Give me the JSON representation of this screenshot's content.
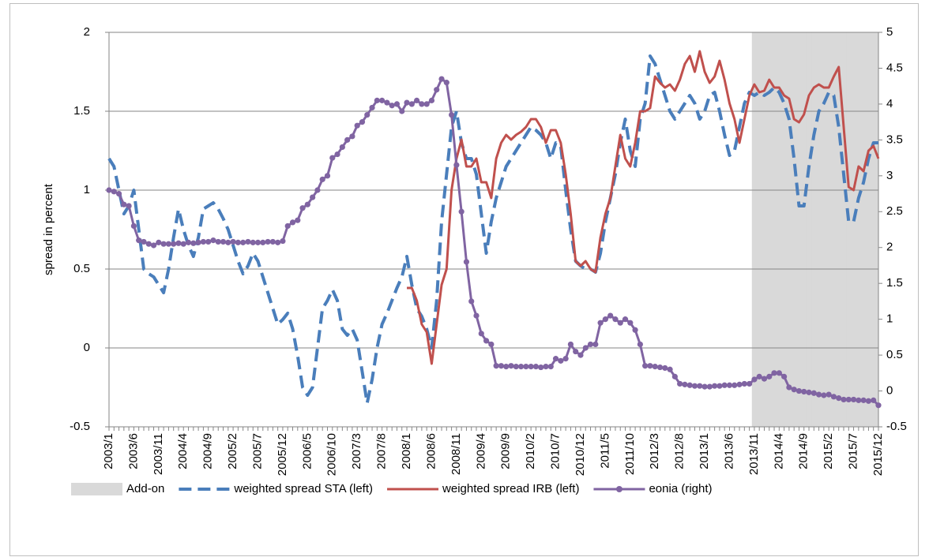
{
  "chart_data": {
    "type": "line",
    "y_label": "spread in percent",
    "categories": [
      "2003/1",
      null,
      null,
      null,
      null,
      "2003/6",
      null,
      null,
      null,
      null,
      "2003/11",
      null,
      null,
      null,
      null,
      "2004/4",
      null,
      null,
      null,
      null,
      "2004/9",
      null,
      null,
      null,
      null,
      "2005/2",
      null,
      null,
      null,
      null,
      "2005/7",
      null,
      null,
      null,
      null,
      "2005/12",
      null,
      null,
      null,
      null,
      "2006/5",
      null,
      null,
      null,
      null,
      "2006/10",
      null,
      null,
      null,
      null,
      "2007/3",
      null,
      null,
      null,
      null,
      "2007/8",
      null,
      null,
      null,
      null,
      "2008/1",
      null,
      null,
      null,
      null,
      "2008/6",
      null,
      null,
      null,
      null,
      "2008/11",
      null,
      null,
      null,
      null,
      "2009/4",
      null,
      null,
      null,
      null,
      "2009/9",
      null,
      null,
      null,
      null,
      "2010/2",
      null,
      null,
      null,
      null,
      "2010/7",
      null,
      null,
      null,
      null,
      "2010/12",
      null,
      null,
      null,
      null,
      "2011/5",
      null,
      null,
      null,
      null,
      "2011/10",
      null,
      null,
      null,
      null,
      "2012/3",
      null,
      null,
      null,
      null,
      "2012/8",
      null,
      null,
      null,
      null,
      "2013/1",
      null,
      null,
      null,
      null,
      "2013/6",
      null,
      null,
      null,
      null,
      "2013/11",
      null,
      null,
      null,
      null,
      "2014/4",
      null,
      null,
      null,
      null,
      "2014/9",
      null,
      null,
      null,
      null,
      "2015/2",
      null,
      null,
      null,
      null,
      "2015/7",
      null,
      null,
      null,
      null,
      "2015/12"
    ],
    "series": [
      {
        "name": "Add-on",
        "type": "bar",
        "color": "#d9d9d9",
        "values": [
          null,
          null,
          null,
          null,
          null,
          null,
          null,
          null,
          null,
          null,
          null,
          null,
          null,
          null,
          null,
          null,
          null,
          null,
          null,
          null,
          null,
          null,
          null,
          null,
          null,
          null,
          null,
          null,
          null,
          null,
          null,
          null,
          null,
          null,
          null,
          null,
          null,
          null,
          null,
          null,
          null,
          null,
          null,
          null,
          null,
          null,
          null,
          null,
          null,
          null,
          null,
          null,
          null,
          null,
          null,
          null,
          null,
          null,
          null,
          null,
          null,
          null,
          null,
          null,
          null,
          null,
          null,
          null,
          null,
          null,
          null,
          null,
          null,
          null,
          null,
          null,
          null,
          null,
          null,
          null,
          null,
          null,
          null,
          null,
          null,
          null,
          null,
          null,
          null,
          null,
          null,
          null,
          null,
          null,
          null,
          null,
          null,
          null,
          null,
          null,
          null,
          null,
          null,
          null,
          null,
          null,
          null,
          null,
          null,
          null,
          null,
          null,
          null,
          null,
          null,
          null,
          null,
          null,
          null,
          null,
          null,
          null,
          null,
          null,
          null,
          null,
          null,
          null,
          null,
          null,
          2,
          2,
          2,
          2,
          2,
          2,
          2,
          2,
          2,
          2,
          2,
          2,
          2,
          2,
          2,
          2,
          2,
          2,
          2,
          2,
          2,
          2,
          2,
          2,
          2,
          2
        ]
      },
      {
        "name": "weighted spread STA (left)",
        "color": "#4a7ebb",
        "dash": true,
        "values": [
          1.2,
          1.15,
          1.0,
          0.85,
          0.9,
          1.0,
          0.75,
          0.5,
          0.47,
          0.45,
          0.4,
          0.35,
          0.5,
          0.7,
          0.88,
          0.75,
          0.65,
          0.58,
          0.7,
          0.88,
          0.9,
          0.92,
          0.88,
          0.82,
          0.75,
          0.65,
          0.55,
          0.47,
          0.52,
          0.6,
          0.55,
          0.45,
          0.35,
          0.25,
          0.15,
          0.18,
          0.22,
          0.12,
          -0.05,
          -0.25,
          -0.3,
          -0.25,
          0.0,
          0.25,
          0.3,
          0.37,
          0.3,
          0.12,
          0.08,
          0.12,
          0.05,
          -0.15,
          -0.35,
          -0.2,
          0.0,
          0.15,
          0.22,
          0.3,
          0.38,
          0.45,
          0.58,
          0.4,
          0.25,
          0.2,
          0.12,
          0.0,
          0.3,
          0.8,
          1.1,
          1.4,
          1.5,
          1.3,
          1.2,
          1.2,
          1.1,
          0.85,
          0.6,
          0.8,
          0.95,
          1.05,
          1.15,
          1.2,
          1.25,
          1.3,
          1.35,
          1.4,
          1.38,
          1.35,
          1.3,
          1.2,
          1.3,
          1.28,
          1.0,
          0.75,
          0.55,
          0.52,
          0.5,
          0.5,
          0.48,
          0.6,
          0.8,
          0.95,
          1.1,
          1.3,
          1.45,
          1.25,
          1.15,
          1.45,
          1.55,
          1.85,
          1.8,
          1.7,
          1.6,
          1.5,
          1.45,
          1.5,
          1.55,
          1.6,
          1.55,
          1.45,
          1.5,
          1.6,
          1.62,
          1.5,
          1.35,
          1.22,
          1.25,
          1.4,
          1.55,
          1.62,
          1.6,
          1.62,
          1.6,
          1.62,
          1.65,
          1.62,
          1.55,
          1.45,
          1.2,
          0.9,
          0.9,
          1.15,
          1.35,
          1.5,
          1.55,
          1.62,
          1.6,
          1.4,
          1.1,
          0.8,
          0.8,
          0.95,
          1.05,
          1.2,
          1.3,
          1.3
        ]
      },
      {
        "name": "weighted spread IRB (left)",
        "color": "#c0504d",
        "values": [
          null,
          null,
          null,
          null,
          null,
          null,
          null,
          null,
          null,
          null,
          null,
          null,
          null,
          null,
          null,
          null,
          null,
          null,
          null,
          null,
          null,
          null,
          null,
          null,
          null,
          null,
          null,
          null,
          null,
          null,
          null,
          null,
          null,
          null,
          null,
          null,
          null,
          null,
          null,
          null,
          null,
          null,
          null,
          null,
          null,
          null,
          null,
          null,
          null,
          null,
          null,
          null,
          null,
          null,
          null,
          null,
          null,
          null,
          null,
          null,
          0.38,
          0.38,
          0.3,
          0.15,
          0.1,
          -0.1,
          0.15,
          0.4,
          0.5,
          1.0,
          1.2,
          1.32,
          1.15,
          1.15,
          1.2,
          1.05,
          1.05,
          0.95,
          1.2,
          1.3,
          1.35,
          1.32,
          1.35,
          1.37,
          1.4,
          1.45,
          1.45,
          1.4,
          1.3,
          1.38,
          1.38,
          1.3,
          1.1,
          0.85,
          0.55,
          0.52,
          0.55,
          0.5,
          0.48,
          0.7,
          0.85,
          0.95,
          1.15,
          1.35,
          1.2,
          1.15,
          1.3,
          1.5,
          1.5,
          1.52,
          1.72,
          1.68,
          1.65,
          1.67,
          1.63,
          1.7,
          1.8,
          1.85,
          1.75,
          1.88,
          1.75,
          1.68,
          1.72,
          1.82,
          1.7,
          1.55,
          1.45,
          1.3,
          1.45,
          1.6,
          1.67,
          1.62,
          1.63,
          1.7,
          1.65,
          1.65,
          1.6,
          1.58,
          1.45,
          1.43,
          1.48,
          1.6,
          1.65,
          1.67,
          1.65,
          1.65,
          1.72,
          1.78,
          1.4,
          1.02,
          1.0,
          1.15,
          1.12,
          1.25,
          1.28,
          1.2
        ]
      },
      {
        "name": "eonia (right)",
        "color": "#8064a2",
        "marker": "circle",
        "axis": "y2",
        "values": [
          2.8,
          2.78,
          2.75,
          2.6,
          2.58,
          2.3,
          2.1,
          2.08,
          2.05,
          2.03,
          2.07,
          2.05,
          2.05,
          2.05,
          2.06,
          2.05,
          2.07,
          2.06,
          2.07,
          2.08,
          2.08,
          2.1,
          2.08,
          2.08,
          2.07,
          2.08,
          2.07,
          2.07,
          2.08,
          2.07,
          2.07,
          2.07,
          2.08,
          2.08,
          2.07,
          2.09,
          2.3,
          2.35,
          2.38,
          2.55,
          2.6,
          2.7,
          2.8,
          2.95,
          3.0,
          3.25,
          3.3,
          3.4,
          3.5,
          3.55,
          3.7,
          3.75,
          3.85,
          3.95,
          4.05,
          4.05,
          4.02,
          3.98,
          4.0,
          3.9,
          4.02,
          4.0,
          4.05,
          4.0,
          4.0,
          4.05,
          4.2,
          4.35,
          4.3,
          3.85,
          3.15,
          2.5,
          1.8,
          1.25,
          1.05,
          0.8,
          0.7,
          0.65,
          0.35,
          0.35,
          0.34,
          0.35,
          0.34,
          0.34,
          0.34,
          0.34,
          0.34,
          0.33,
          0.34,
          0.34,
          0.45,
          0.42,
          0.45,
          0.65,
          0.55,
          0.5,
          0.6,
          0.65,
          0.65,
          0.95,
          1.0,
          1.05,
          1.0,
          0.95,
          1.0,
          0.95,
          0.85,
          0.65,
          0.35,
          0.35,
          0.34,
          0.33,
          0.32,
          0.3,
          0.2,
          0.1,
          0.09,
          0.08,
          0.07,
          0.07,
          0.06,
          0.06,
          0.07,
          0.07,
          0.08,
          0.08,
          0.08,
          0.09,
          0.1,
          0.1,
          0.16,
          0.2,
          0.17,
          0.2,
          0.25,
          0.25,
          0.2,
          0.05,
          0.02,
          0.0,
          -0.01,
          -0.02,
          -0.03,
          -0.05,
          -0.06,
          -0.05,
          -0.08,
          -0.1,
          -0.12,
          -0.12,
          -0.12,
          -0.13,
          -0.13,
          -0.14,
          -0.13,
          -0.2
        ]
      }
    ],
    "ylim": [
      -0.5,
      2
    ],
    "yticks": [
      -0.5,
      0,
      0.5,
      1,
      1.5,
      2
    ],
    "y2lim": [
      -0.5,
      5
    ],
    "y2ticks": [
      -0.5,
      0,
      0.5,
      1,
      1.5,
      2,
      2.5,
      3,
      3.5,
      4,
      4.5,
      5
    ],
    "grid": true,
    "legend": "bottom"
  }
}
